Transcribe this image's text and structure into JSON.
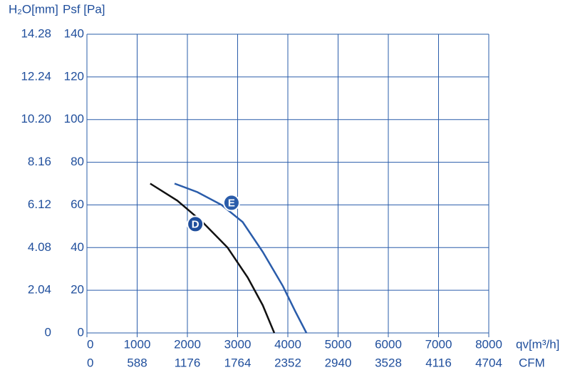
{
  "chart_data": {
    "type": "line",
    "y_label": "H₂O[mm]",
    "y2_label": "Psf [Pa]",
    "x_label": "qv[m³/h]",
    "x2_label": "CFM",
    "xlim": [
      0,
      8000
    ],
    "xticks": [
      0,
      1000,
      2000,
      3000,
      4000,
      5000,
      6000,
      7000,
      8000
    ],
    "x2lim": [
      0,
      4704
    ],
    "x2ticks": [
      0,
      588,
      1176,
      1764,
      2352,
      2940,
      3528,
      4116,
      4704
    ],
    "ylim": [
      0,
      140
    ],
    "yticks": [
      0,
      20,
      40,
      60,
      80,
      100,
      120,
      140
    ],
    "y2lim": [
      0,
      14.28
    ],
    "y2ticks": [
      0,
      2.04,
      4.08,
      6.12,
      8.16,
      {
        "value": 10.2,
        "label": "10.20"
      },
      12.24,
      14.28
    ],
    "grid": true,
    "grid_color": "#2a5caa",
    "series": [
      {
        "name": "D",
        "color": "#111111",
        "x": [
          1260,
          1800,
          2300,
          2800,
          3200,
          3500,
          3730
        ],
        "values": [
          70,
          62,
          52,
          40,
          26,
          13,
          0
        ]
      },
      {
        "name": "E",
        "color": "#2a5caa",
        "x": [
          1745,
          2200,
          2680,
          3100,
          3500,
          3900,
          4150,
          4370
        ],
        "values": [
          70,
          66,
          60,
          52,
          38,
          22,
          10,
          0
        ]
      }
    ]
  }
}
